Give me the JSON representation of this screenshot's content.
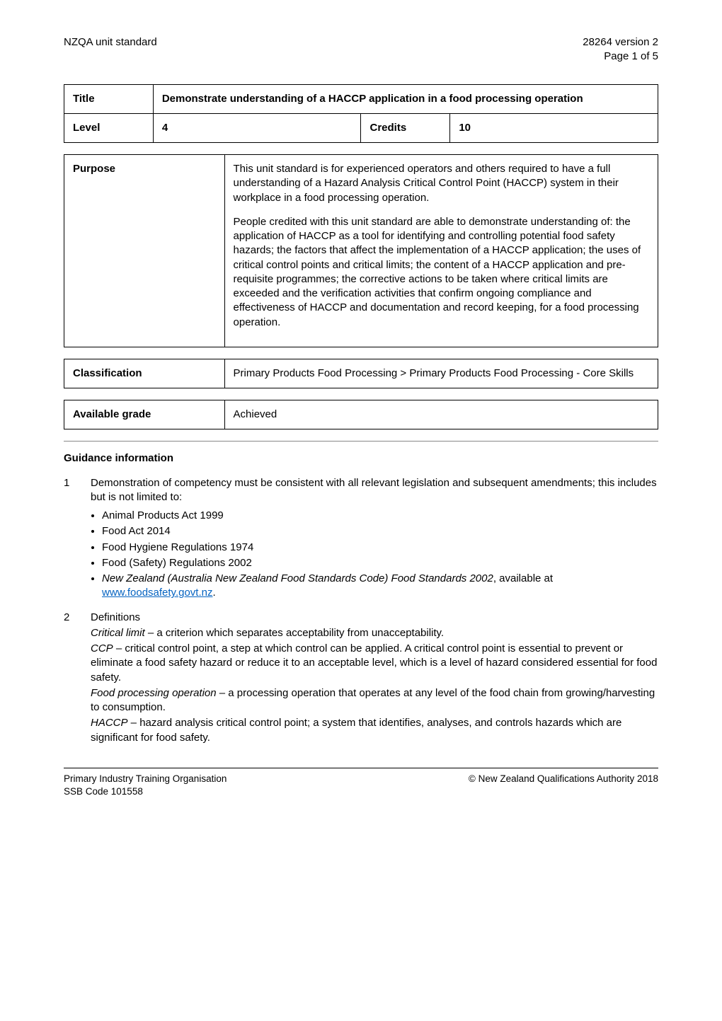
{
  "header": {
    "left": "NZQA unit standard",
    "right_line1": "28264 version 2",
    "right_line2": "Page 1 of 5"
  },
  "title_table": {
    "title_label": "Title",
    "title_text": "Demonstrate understanding of a HACCP application in a food processing operation",
    "level_label": "Level",
    "level_value": "4",
    "credits_label": "Credits",
    "credits_value": "10"
  },
  "purpose": {
    "label": "Purpose",
    "p1": "This unit standard is for experienced operators and others required to have a full understanding of a Hazard Analysis Critical Control Point (HACCP) system in their workplace in a food processing operation.",
    "p2": "People credited with this unit standard are able to demonstrate understanding of: the application of HACCP as a tool for identifying and controlling potential food safety hazards; the factors that affect the implementation of a HACCP application; the uses of critical control points and critical limits; the content of a HACCP application and pre-requisite programmes; the corrective actions to be taken where critical limits are exceeded and the verification activities that confirm ongoing compliance and effectiveness of HACCP and documentation and record keeping, for a food processing operation."
  },
  "classification": {
    "label": "Classification",
    "value": "Primary Products Food Processing > Primary Products Food Processing - Core Skills"
  },
  "grade": {
    "label": "Available grade",
    "value": "Achieved"
  },
  "guidance": {
    "heading": "Guidance information",
    "item1_num": "1",
    "item1_intro": "Demonstration of competency must be consistent with all relevant legislation and subsequent amendments; this includes but is not limited to:",
    "item1_bullets": [
      "Animal Products Act 1999",
      "Food Act 2014",
      "Food Hygiene Regulations 1974",
      "Food (Safety) Regulations 2002"
    ],
    "item1_bullet5_italic": "New Zealand (Australia New Zealand Food Standards Code) Food Standards 2002",
    "item1_bullet5_tail": ", available at ",
    "item1_bullet5_link_text": "www.foodsafety.govt.nz",
    "item1_bullet5_end": ".",
    "item2_num": "2",
    "item2_heading": "Definitions",
    "defs": {
      "d1_term": "Critical limit –",
      "d1_body": " a criterion which separates acceptability from unacceptability.",
      "d2_term": "CCP",
      "d2_body": " – critical control point, a step at which control can be applied.  A critical control point is essential to prevent or eliminate a food safety hazard or reduce it to an acceptable level, which is a level of hazard considered essential for food safety.",
      "d3_term": "Food processing operation",
      "d3_body": " – a processing operation that operates at any level of the food chain from growing/harvesting to consumption.",
      "d4_term": "HACCP",
      "d4_body": " – hazard analysis critical control point; a system that identifies, analyses, and controls hazards which are significant for food safety."
    }
  },
  "footer": {
    "left_line1": "Primary Industry Training Organisation",
    "left_line2": "SSB Code 101558",
    "right": "© New Zealand Qualifications Authority 2018"
  },
  "colors": {
    "text": "#000000",
    "background": "#ffffff",
    "link": "#0563c1",
    "border": "#000000",
    "hr": "#888888"
  }
}
